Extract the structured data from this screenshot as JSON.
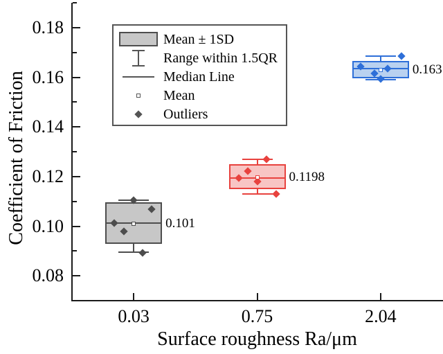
{
  "chart_data": {
    "type": "box",
    "xlabel": "Surface roughness Ra/μm",
    "ylabel": "Coefficient of Friction",
    "categories": [
      "0.03",
      "0.75",
      "2.04"
    ],
    "ylim": [
      0.07,
      0.19
    ],
    "yticks_major": [
      {
        "v": 0.08,
        "label": "0.08"
      },
      {
        "v": 0.1,
        "label": "0.10"
      },
      {
        "v": 0.12,
        "label": "0.12"
      },
      {
        "v": 0.14,
        "label": "0.14"
      },
      {
        "v": 0.16,
        "label": "0.16"
      },
      {
        "v": 0.18,
        "label": "0.18"
      }
    ],
    "yticks_minor": [
      0.09,
      0.11,
      0.13,
      0.15,
      0.17,
      0.19
    ],
    "grid": false,
    "legend_position": "top-left-inside",
    "legend": [
      {
        "symbol": "box",
        "label": "Mean ± 1SD"
      },
      {
        "symbol": "errorbar",
        "label": "Range within 1.5QR"
      },
      {
        "symbol": "line",
        "label": "Median Line"
      },
      {
        "symbol": "square",
        "label": "Mean"
      },
      {
        "symbol": "diamond",
        "label": "Outliers"
      }
    ],
    "boxes": [
      {
        "category": "0.03",
        "line_color": "#4d4d4d",
        "fill_color": "#c7c7c7",
        "mean": 0.101,
        "mean_label": "0.101",
        "median": 0.1013,
        "box_top": 0.1095,
        "box_bottom": 0.093,
        "whisker_high": 0.1105,
        "whisker_low": 0.0895,
        "points": [
          {
            "v": 0.1105,
            "dx": 0
          },
          {
            "v": 0.1068,
            "dx": 26
          },
          {
            "v": 0.1013,
            "dx": -28
          },
          {
            "v": 0.098,
            "dx": -14
          },
          {
            "v": 0.0892,
            "dx": 13
          }
        ]
      },
      {
        "category": "0.75",
        "line_color": "#e8423e",
        "fill_color": "#f8c5c4",
        "mean": 0.1198,
        "mean_label": "0.1198",
        "median": 0.1195,
        "box_top": 0.125,
        "box_bottom": 0.115,
        "whisker_high": 0.127,
        "whisker_low": 0.113,
        "points": [
          {
            "v": 0.127,
            "dx": 13
          },
          {
            "v": 0.1223,
            "dx": -14
          },
          {
            "v": 0.1194,
            "dx": -27
          },
          {
            "v": 0.1181,
            "dx": 0
          },
          {
            "v": 0.1131,
            "dx": 27
          }
        ]
      },
      {
        "category": "2.04",
        "line_color": "#2e6fd8",
        "fill_color": "#b9d1f0",
        "mean": 0.163,
        "mean_label": "0.163",
        "median": 0.1635,
        "box_top": 0.1665,
        "box_bottom": 0.1597,
        "whisker_high": 0.1685,
        "whisker_low": 0.159,
        "points": [
          {
            "v": 0.1685,
            "dx": 30
          },
          {
            "v": 0.1644,
            "dx": -29
          },
          {
            "v": 0.1635,
            "dx": 10
          },
          {
            "v": 0.1615,
            "dx": -9
          },
          {
            "v": 0.1594,
            "dx": 0
          }
        ]
      }
    ]
  }
}
